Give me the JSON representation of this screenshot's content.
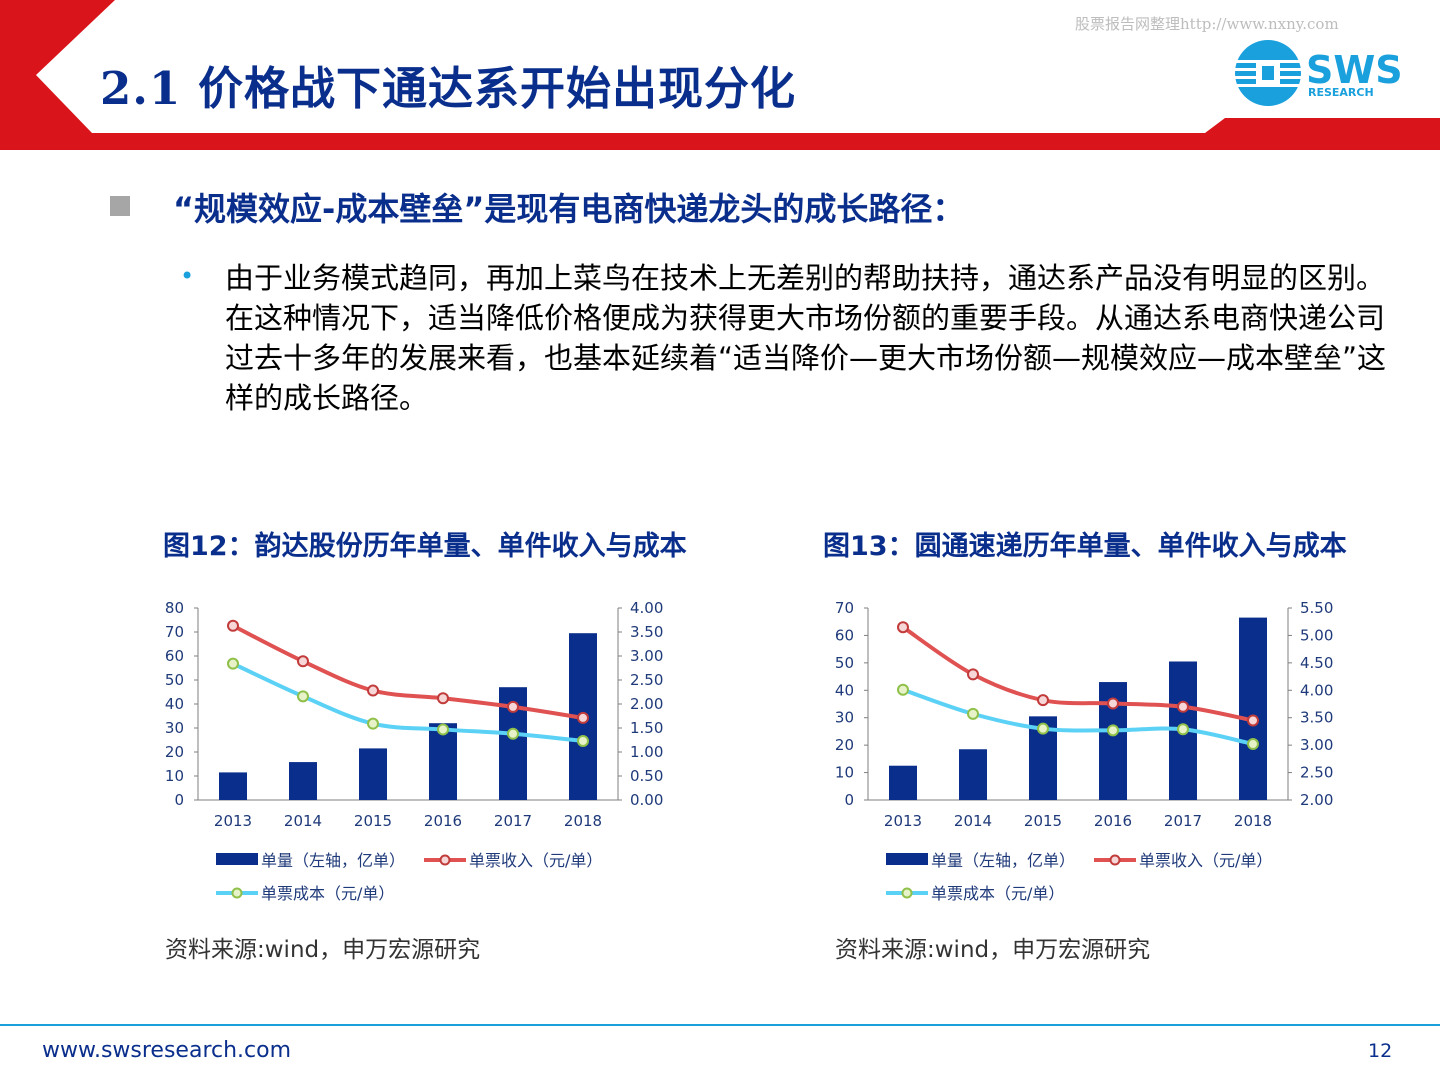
{
  "header": {
    "title": "2.1 价格战下通达系开始出现分化",
    "watermark": "股票报告网整理http://www.nxny.com",
    "logo_main": "SWS",
    "logo_sub": "RESEARCH",
    "accent_color": "#d9141a",
    "title_color": "#0a2e8c"
  },
  "main": {
    "heading": "“规模效应-成本壁垒”是现有电商快递龙头的成长路径：",
    "bullet_marker": "•",
    "paragraph": "由于业务模式趋同，再加上菜鸟在技术上无差别的帮助扶持，通达系产品没有明显的区别。在这种情况下，适当降低价格便成为获得更大市场份额的重要手段。从通达系电商快递公司过去十多年的发展来看，也基本延续着“适当降价—更大市场份额—规模效应—成本壁垒”这样的成长路径。"
  },
  "figures": [
    {
      "caption": "图12：韵达股份历年单量、单件收入与成本",
      "source": "资料来源:wind，申万宏源研究"
    },
    {
      "caption": "图13：圆通速递历年单量、单件收入与成本",
      "source": "资料来源:wind，申万宏源研究"
    }
  ],
  "footer": {
    "url": "www.swsresearch.com",
    "page": "12"
  },
  "chart_data": [
    {
      "type": "bar",
      "categories": [
        "2013",
        "2014",
        "2015",
        "2016",
        "2017",
        "2018"
      ],
      "y_left": {
        "range": [
          0,
          80
        ],
        "ticks": [
          "0",
          "10",
          "20",
          "30",
          "40",
          "50",
          "60",
          "70",
          "80"
        ]
      },
      "y_right": {
        "range": [
          0,
          4
        ],
        "ticks": [
          "0.00",
          "0.50",
          "1.00",
          "1.50",
          "2.00",
          "2.50",
          "3.00",
          "3.50",
          "4.00"
        ]
      },
      "series": [
        {
          "name": "单量（左轴，亿单）",
          "type": "bar",
          "axis": "left",
          "color": "#0a2e8c",
          "values": [
            11.5,
            15.8,
            21.5,
            32.0,
            47.0,
            69.5
          ]
        },
        {
          "name": "单票收入（元/单）",
          "type": "line",
          "axis": "right",
          "color": "#e05252",
          "values": [
            3.63,
            2.89,
            2.28,
            2.12,
            1.94,
            1.71
          ]
        },
        {
          "name": "单票成本（元/单）",
          "type": "line",
          "axis": "right",
          "color": "#5bd1f5",
          "values": [
            2.84,
            2.16,
            1.59,
            1.47,
            1.38,
            1.23
          ]
        }
      ],
      "grid": false,
      "legend_position": "bottom"
    },
    {
      "type": "bar",
      "categories": [
        "2013",
        "2014",
        "2015",
        "2016",
        "2017",
        "2018"
      ],
      "y_left": {
        "range": [
          0,
          70
        ],
        "ticks": [
          "0",
          "10",
          "20",
          "30",
          "40",
          "50",
          "60",
          "70"
        ]
      },
      "y_right": {
        "range": [
          2,
          5.5
        ],
        "ticks": [
          "2.00",
          "2.50",
          "3.00",
          "3.50",
          "4.00",
          "4.50",
          "5.00",
          "5.50"
        ]
      },
      "series": [
        {
          "name": "单量（左轴，亿单）",
          "type": "bar",
          "axis": "left",
          "color": "#0a2e8c",
          "values": [
            12.5,
            18.5,
            30.5,
            43.0,
            50.5,
            66.5
          ]
        },
        {
          "name": "单票收入（元/单）",
          "type": "line",
          "axis": "right",
          "color": "#e05252",
          "values": [
            5.15,
            4.29,
            3.82,
            3.76,
            3.7,
            3.45
          ]
        },
        {
          "name": "单票成本（元/单）",
          "type": "line",
          "axis": "right",
          "color": "#5bd1f5",
          "values": [
            4.01,
            3.57,
            3.3,
            3.27,
            3.29,
            3.02
          ]
        }
      ],
      "grid": false,
      "legend_position": "bottom"
    }
  ]
}
